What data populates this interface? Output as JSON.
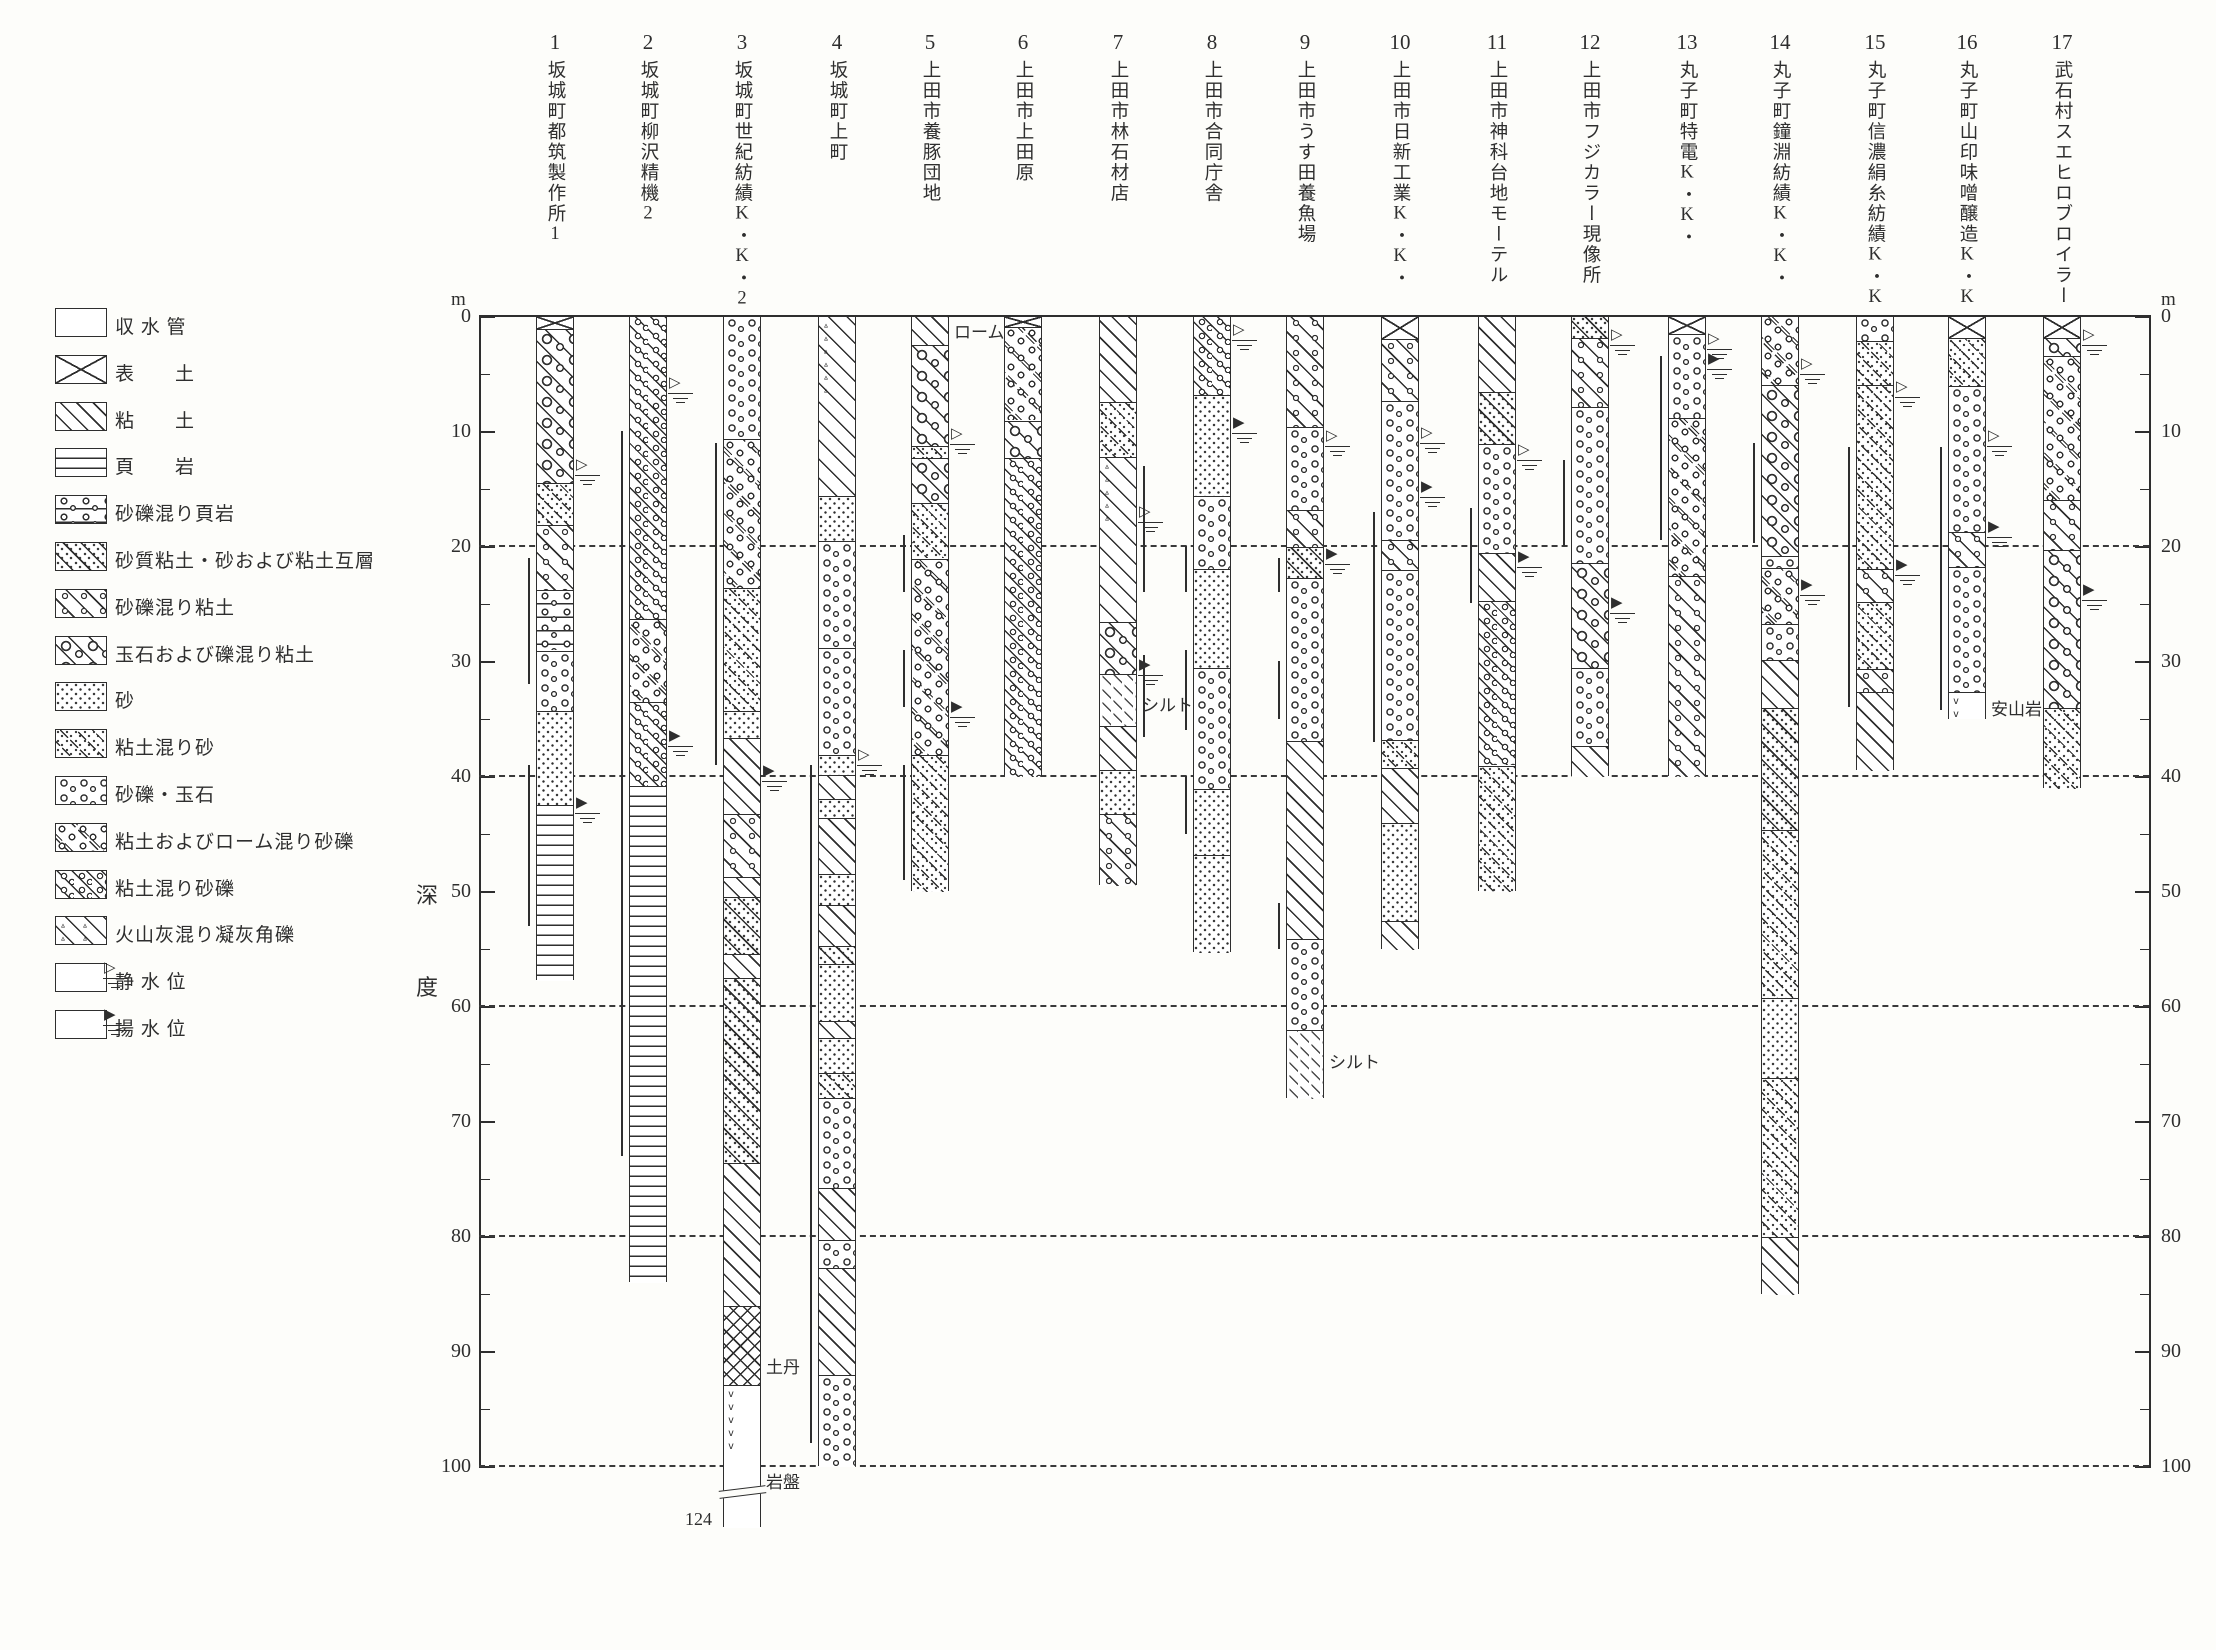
{
  "figure": {
    "type": "geological well-log columnar section",
    "unit": "m"
  },
  "axis": {
    "unit": "m",
    "ticks": [
      0,
      10,
      20,
      30,
      40,
      50,
      60,
      70,
      80,
      90,
      100
    ],
    "minor_step": 5,
    "gridlines": [
      20,
      40,
      60,
      80,
      100
    ],
    "max_depth": 100,
    "depth_label": [
      "深",
      "度"
    ]
  },
  "legend": {
    "order": [
      "pipe",
      "topsoil",
      "clay",
      "shale",
      "gravel_shale",
      "sandy_clay_alt",
      "gravel_clay",
      "boulder_clay",
      "sand",
      "clay_sand",
      "gravel_boulder",
      "clay_loam_gravel",
      "clay_gravel",
      "tuff_breccia",
      "static_wl",
      "pumped_wl"
    ],
    "labels": {
      "pipe": "収 水 管",
      "topsoil": "表　　土",
      "clay": "粘　　土",
      "shale": "頁　　岩",
      "gravel_shale": "砂礫混り頁岩",
      "sandy_clay_alt": "砂質粘土・砂および粘土互層",
      "gravel_clay": "砂礫混り粘土",
      "boulder_clay": "玉石および礫混り粘土",
      "sand": "砂",
      "clay_sand": "粘土混り砂",
      "gravel_boulder": "砂礫・玉石",
      "clay_loam_gravel": "粘土およびローム混り砂礫",
      "clay_gravel": "粘土混り砂礫",
      "tuff_breccia": "火山灰混り凝灰角礫",
      "static_wl": "静 水 位",
      "pumped_wl": "揚 水 位"
    }
  },
  "boreholes": [
    {
      "id": "1",
      "name": "坂城町都筑製作所1",
      "segments": [
        [
          0,
          1,
          "topsoil"
        ],
        [
          1,
          14.4,
          "boulder_clay"
        ],
        [
          14.4,
          18.1,
          "clay_sand"
        ],
        [
          18.1,
          23.7,
          "gravel_clay"
        ],
        [
          23.7,
          29,
          "gravel_shale"
        ],
        [
          29,
          34.3,
          "gravel_boulder"
        ],
        [
          34.3,
          42.4,
          "sand"
        ],
        [
          42.4,
          57.7,
          "shale"
        ]
      ],
      "water_levels": [
        {
          "type": "static",
          "depth": 13.8
        },
        {
          "type": "pumped",
          "depth": 43.2
        }
      ],
      "pipes": [
        {
          "side": "left",
          "from": 21,
          "to": 32
        },
        {
          "side": "left",
          "from": 39,
          "to": 53
        }
      ],
      "notes": []
    },
    {
      "id": "2",
      "name": "坂城町柳沢精機2",
      "segments": [
        [
          0,
          26.3,
          "clay_gravel"
        ],
        [
          26.3,
          33.5,
          "clay_loam_gravel"
        ],
        [
          33.5,
          40.8,
          "clay_gravel"
        ],
        [
          40.8,
          84,
          "shale"
        ]
      ],
      "water_levels": [
        {
          "type": "static",
          "depth": 6.7
        },
        {
          "type": "pumped",
          "depth": 37.4
        }
      ],
      "pipes": [
        {
          "side": "left",
          "from": 10,
          "to": 73
        }
      ],
      "notes": []
    },
    {
      "id": "3",
      "name": "坂城町世紀紡績K・K・2",
      "segments": [
        [
          0,
          10.6,
          "gravel_boulder"
        ],
        [
          10.6,
          23.6,
          "clay_loam_gravel"
        ],
        [
          23.6,
          34.3,
          "clay_sand"
        ],
        [
          34.3,
          36.6,
          "sand"
        ],
        [
          36.6,
          43.2,
          "clay"
        ],
        [
          43.2,
          48.7,
          "gravel_clay"
        ],
        [
          48.7,
          50.4,
          "clay"
        ],
        [
          50.4,
          55.4,
          "sandy_clay_alt"
        ],
        [
          55.4,
          57.5,
          "clay"
        ],
        [
          57.5,
          73.6,
          "sandy_clay_alt"
        ],
        [
          73.6,
          86,
          "clay"
        ],
        [
          86,
          92.9,
          "hardpan"
        ],
        [
          92.9,
          105.3,
          "bedrock"
        ]
      ],
      "water_levels": [
        {
          "type": "pumped",
          "depth": 40.4
        }
      ],
      "pipes": [
        {
          "side": "left",
          "from": 11,
          "to": 39
        }
      ],
      "notes": [
        {
          "text": "土丹",
          "depth": 91,
          "side": "right"
        },
        {
          "text": "岩盤",
          "depth": 101,
          "side": "right"
        }
      ],
      "break_at": 102.2,
      "bottom_label": "124"
    },
    {
      "id": "4",
      "name": "坂城町上町",
      "segments": [
        [
          0,
          15.6,
          "tuff_breccia"
        ],
        [
          15.6,
          19.5,
          "sand"
        ],
        [
          19.5,
          28.8,
          "gravel_boulder"
        ],
        [
          28.8,
          38.1,
          "gravel_boulder"
        ],
        [
          38.1,
          39.8,
          "sand"
        ],
        [
          39.8,
          41.9,
          "clay"
        ],
        [
          41.9,
          43.6,
          "sand"
        ],
        [
          43.6,
          48.4,
          "clay"
        ],
        [
          48.4,
          51.1,
          "sand"
        ],
        [
          51.1,
          54.7,
          "clay"
        ],
        [
          54.7,
          56.3,
          "sandy_clay_alt"
        ],
        [
          56.3,
          61.2,
          "sand"
        ],
        [
          61.2,
          62.7,
          "clay"
        ],
        [
          62.7,
          65.7,
          "sand"
        ],
        [
          65.7,
          67.9,
          "clay_sand"
        ],
        [
          67.9,
          75.7,
          "gravel_boulder"
        ],
        [
          75.7,
          80.3,
          "clay"
        ],
        [
          80.3,
          82.7,
          "gravel_boulder"
        ],
        [
          82.7,
          92,
          "clay"
        ],
        [
          92,
          100,
          "gravel_boulder"
        ]
      ],
      "water_levels": [
        {
          "type": "static",
          "depth": 39
        }
      ],
      "pipes": [
        {
          "side": "left",
          "from": 39,
          "to": 98
        }
      ],
      "notes": []
    },
    {
      "id": "5",
      "name": "上田市養豚団地",
      "segments": [
        [
          0,
          2.4,
          "clay"
        ],
        [
          2.4,
          11.2,
          "boulder_clay"
        ],
        [
          11.2,
          12.3,
          "clay_sand"
        ],
        [
          12.3,
          16.2,
          "boulder_clay"
        ],
        [
          16.2,
          21,
          "clay_sand"
        ],
        [
          21,
          38.1,
          "clay_loam_gravel"
        ],
        [
          38.1,
          50,
          "clay_sand"
        ]
      ],
      "water_levels": [
        {
          "type": "static",
          "depth": 11.1
        },
        {
          "type": "pumped",
          "depth": 34.9
        }
      ],
      "pipes": [
        {
          "side": "left",
          "from": 19,
          "to": 24
        },
        {
          "side": "left",
          "from": 29,
          "to": 34
        },
        {
          "side": "left",
          "from": 39,
          "to": 49
        }
      ],
      "notes": [
        {
          "text": "ローム",
          "depth": 1,
          "side": "right"
        }
      ]
    },
    {
      "id": "6",
      "name": "上田市上田原",
      "segments": [
        [
          0,
          0.9,
          "topsoil"
        ],
        [
          0.9,
          9,
          "clay_loam_gravel"
        ],
        [
          9,
          12.3,
          "boulder_clay"
        ],
        [
          12.3,
          40,
          "clay_gravel"
        ]
      ],
      "water_levels": [],
      "pipes": [],
      "notes": []
    },
    {
      "id": "7",
      "name": "上田市林石材店",
      "segments": [
        [
          0,
          7.4,
          "clay"
        ],
        [
          7.4,
          12.2,
          "clay_sand"
        ],
        [
          12.2,
          26.5,
          "tuff_breccia"
        ],
        [
          26.5,
          31,
          "boulder_clay"
        ],
        [
          31,
          35.6,
          "silt"
        ],
        [
          35.6,
          39.4,
          "clay"
        ],
        [
          39.4,
          43.2,
          "sand"
        ],
        [
          43.2,
          49.5,
          "gravel_clay"
        ]
      ],
      "water_levels": [
        {
          "type": "static",
          "depth": 17.9
        },
        {
          "type": "pumped",
          "depth": 31.2
        }
      ],
      "pipes": [
        {
          "side": "right",
          "from": 13,
          "to": 24
        },
        {
          "side": "right",
          "from": 29.5,
          "to": 36.6
        }
      ],
      "notes": [
        {
          "text": "シルト",
          "depth": 33.5,
          "side": "right"
        }
      ]
    },
    {
      "id": "8",
      "name": "上田市合同庁舎",
      "segments": [
        [
          0,
          6.8,
          "clay_gravel"
        ],
        [
          6.8,
          15.6,
          "sand"
        ],
        [
          15.6,
          21.9,
          "gravel_boulder"
        ],
        [
          21.9,
          30.5,
          "sand"
        ],
        [
          30.5,
          41,
          "gravel_boulder"
        ],
        [
          41,
          46.8,
          "sand"
        ],
        [
          46.8,
          55.3,
          "sand"
        ]
      ],
      "water_levels": [
        {
          "type": "static",
          "depth": 2.1
        },
        {
          "type": "pumped",
          "depth": 10.2
        }
      ],
      "pipes": [
        {
          "side": "left",
          "from": 20,
          "to": 24
        },
        {
          "side": "left",
          "from": 29,
          "to": 36
        },
        {
          "side": "left",
          "from": 40,
          "to": 45
        }
      ],
      "notes": []
    },
    {
      "id": "9",
      "name": "上田市うす田養魚場",
      "segments": [
        [
          0,
          9.6,
          "gravel_clay"
        ],
        [
          9.6,
          16.8,
          "gravel_boulder"
        ],
        [
          16.8,
          20,
          "gravel_clay"
        ],
        [
          20,
          22.7,
          "sandy_clay_alt"
        ],
        [
          22.7,
          36.9,
          "gravel_boulder"
        ],
        [
          36.9,
          54.1,
          "clay"
        ],
        [
          54.1,
          62,
          "gravel_boulder"
        ],
        [
          62,
          68,
          "silt"
        ]
      ],
      "water_levels": [
        {
          "type": "static",
          "depth": 11.3
        },
        {
          "type": "pumped",
          "depth": 21.6
        }
      ],
      "pipes": [
        {
          "side": "left",
          "from": 21,
          "to": 24
        },
        {
          "side": "left",
          "from": 30,
          "to": 35
        },
        {
          "side": "left",
          "from": 51,
          "to": 55
        }
      ],
      "notes": [
        {
          "text": "シルト",
          "depth": 64.5,
          "side": "right"
        }
      ]
    },
    {
      "id": "10",
      "name": "上田市日新工業K・K・",
      "segments": [
        [
          0,
          1.9,
          "topsoil"
        ],
        [
          1.9,
          7.3,
          "gravel_clay"
        ],
        [
          7.3,
          19.4,
          "gravel_boulder"
        ],
        [
          19.4,
          22,
          "gravel_clay"
        ],
        [
          22,
          36.8,
          "gravel_boulder"
        ],
        [
          36.8,
          39.2,
          "clay_sand"
        ],
        [
          39.2,
          44,
          "clay"
        ],
        [
          44,
          52.5,
          "sand"
        ],
        [
          52.5,
          55,
          "clay"
        ]
      ],
      "water_levels": [
        {
          "type": "static",
          "depth": 11
        },
        {
          "type": "pumped",
          "depth": 15.7
        }
      ],
      "pipes": [
        {
          "side": "left",
          "from": 17,
          "to": 37
        }
      ],
      "notes": []
    },
    {
      "id": "11",
      "name": "上田市神科台地モーテル",
      "segments": [
        [
          0,
          6.5,
          "clay"
        ],
        [
          6.5,
          11,
          "sandy_clay_alt"
        ],
        [
          11,
          20.5,
          "gravel_boulder"
        ],
        [
          20.5,
          24.7,
          "clay"
        ],
        [
          24.7,
          39,
          "clay_gravel"
        ],
        [
          39,
          50,
          "clay_sand"
        ]
      ],
      "water_levels": [
        {
          "type": "static",
          "depth": 12.5
        },
        {
          "type": "pumped",
          "depth": 21.8
        }
      ],
      "pipes": [
        {
          "side": "left",
          "from": 16.7,
          "to": 25
        }
      ],
      "notes": []
    },
    {
      "id": "12",
      "name": "上田市フジカラー現像所",
      "segments": [
        [
          0,
          1.8,
          "sandy_clay_alt"
        ],
        [
          1.8,
          7.8,
          "gravel_clay"
        ],
        [
          7.8,
          21.4,
          "gravel_boulder"
        ],
        [
          21.4,
          30.5,
          "boulder_clay"
        ],
        [
          30.5,
          37.3,
          "gravel_boulder"
        ],
        [
          37.3,
          40,
          "clay"
        ]
      ],
      "water_levels": [
        {
          "type": "static",
          "depth": 2.5
        },
        {
          "type": "pumped",
          "depth": 25.8
        }
      ],
      "pipes": [
        {
          "side": "left",
          "from": 12.5,
          "to": 20
        }
      ],
      "notes": []
    },
    {
      "id": "13",
      "name": "丸子町特電K・K・",
      "segments": [
        [
          0,
          1.5,
          "topsoil"
        ],
        [
          1.5,
          8.8,
          "gravel_boulder"
        ],
        [
          8.8,
          22.5,
          "clay_loam_gravel"
        ],
        [
          22.5,
          40,
          "gravel_clay"
        ]
      ],
      "water_levels": [
        {
          "type": "static",
          "depth": 2.9
        },
        {
          "type": "pumped",
          "depth": 4.6
        }
      ],
      "pipes": [
        {
          "side": "left",
          "from": 3.5,
          "to": 19.5
        }
      ],
      "notes": []
    },
    {
      "id": "14",
      "name": "丸子町鐘淵紡績K・K・",
      "segments": [
        [
          0,
          5.9,
          "clay_loam_gravel"
        ],
        [
          5.9,
          20.8,
          "boulder_clay"
        ],
        [
          20.8,
          21.8,
          "gravel_boulder"
        ],
        [
          21.8,
          26.7,
          "clay_loam_gravel"
        ],
        [
          26.7,
          29.8,
          "gravel_boulder"
        ],
        [
          29.8,
          34,
          "clay"
        ],
        [
          34,
          44.6,
          "sandy_clay_alt"
        ],
        [
          44.6,
          59.2,
          "clay_sand"
        ],
        [
          59.2,
          66.2,
          "sand"
        ],
        [
          66.2,
          80,
          "clay_sand"
        ],
        [
          80,
          85,
          "clay"
        ]
      ],
      "water_levels": [
        {
          "type": "static",
          "depth": 5
        },
        {
          "type": "pumped",
          "depth": 24.3
        }
      ],
      "pipes": [
        {
          "side": "left",
          "from": 11,
          "to": 19.7
        }
      ],
      "notes": []
    },
    {
      "id": "15",
      "name": "丸子町信濃絹糸紡績K・K・",
      "segments": [
        [
          0,
          2.1,
          "gravel_boulder"
        ],
        [
          2.1,
          5.9,
          "clay_sand"
        ],
        [
          5.9,
          21.9,
          "clay_sand"
        ],
        [
          21.9,
          24.8,
          "gravel_clay"
        ],
        [
          24.8,
          30.6,
          "clay_sand"
        ],
        [
          30.6,
          32.6,
          "gravel_clay"
        ],
        [
          32.6,
          39.5,
          "clay"
        ]
      ],
      "water_levels": [
        {
          "type": "static",
          "depth": 7
        },
        {
          "type": "pumped",
          "depth": 22.5
        }
      ],
      "pipes": [
        {
          "side": "left",
          "from": 11.4,
          "to": 34
        }
      ],
      "notes": []
    },
    {
      "id": "16",
      "name": "丸子町山印味噌醸造K・K・",
      "segments": [
        [
          0,
          1.8,
          "topsoil"
        ],
        [
          1.8,
          6,
          "clay_sand"
        ],
        [
          6,
          18.7,
          "gravel_boulder"
        ],
        [
          18.7,
          21.7,
          "gravel_clay"
        ],
        [
          21.7,
          32.6,
          "gravel_boulder"
        ],
        [
          32.6,
          35,
          "bedrock"
        ]
      ],
      "water_levels": [
        {
          "type": "static",
          "depth": 11.3
        },
        {
          "type": "pumped",
          "depth": 19.2
        }
      ],
      "pipes": [
        {
          "side": "left",
          "from": 11.4,
          "to": 34.3
        }
      ],
      "notes": [
        {
          "text": "安山岩",
          "depth": 33.8,
          "side": "right"
        }
      ]
    },
    {
      "id": "17",
      "name": "武石村スエヒロブロイラー",
      "segments": [
        [
          0,
          1.8,
          "topsoil"
        ],
        [
          1.8,
          3.4,
          "boulder_clay"
        ],
        [
          3.4,
          15.9,
          "clay_loam_gravel"
        ],
        [
          15.9,
          20.3,
          "gravel_clay"
        ],
        [
          20.3,
          34,
          "boulder_clay"
        ],
        [
          34,
          41,
          "clay_sand"
        ]
      ],
      "water_levels": [
        {
          "type": "static",
          "depth": 2.5
        },
        {
          "type": "pumped",
          "depth": 24.7
        }
      ],
      "pipes": [],
      "notes": []
    }
  ],
  "colors": {
    "ink": "#2e2e2e",
    "paper": "#fdfdfa"
  }
}
